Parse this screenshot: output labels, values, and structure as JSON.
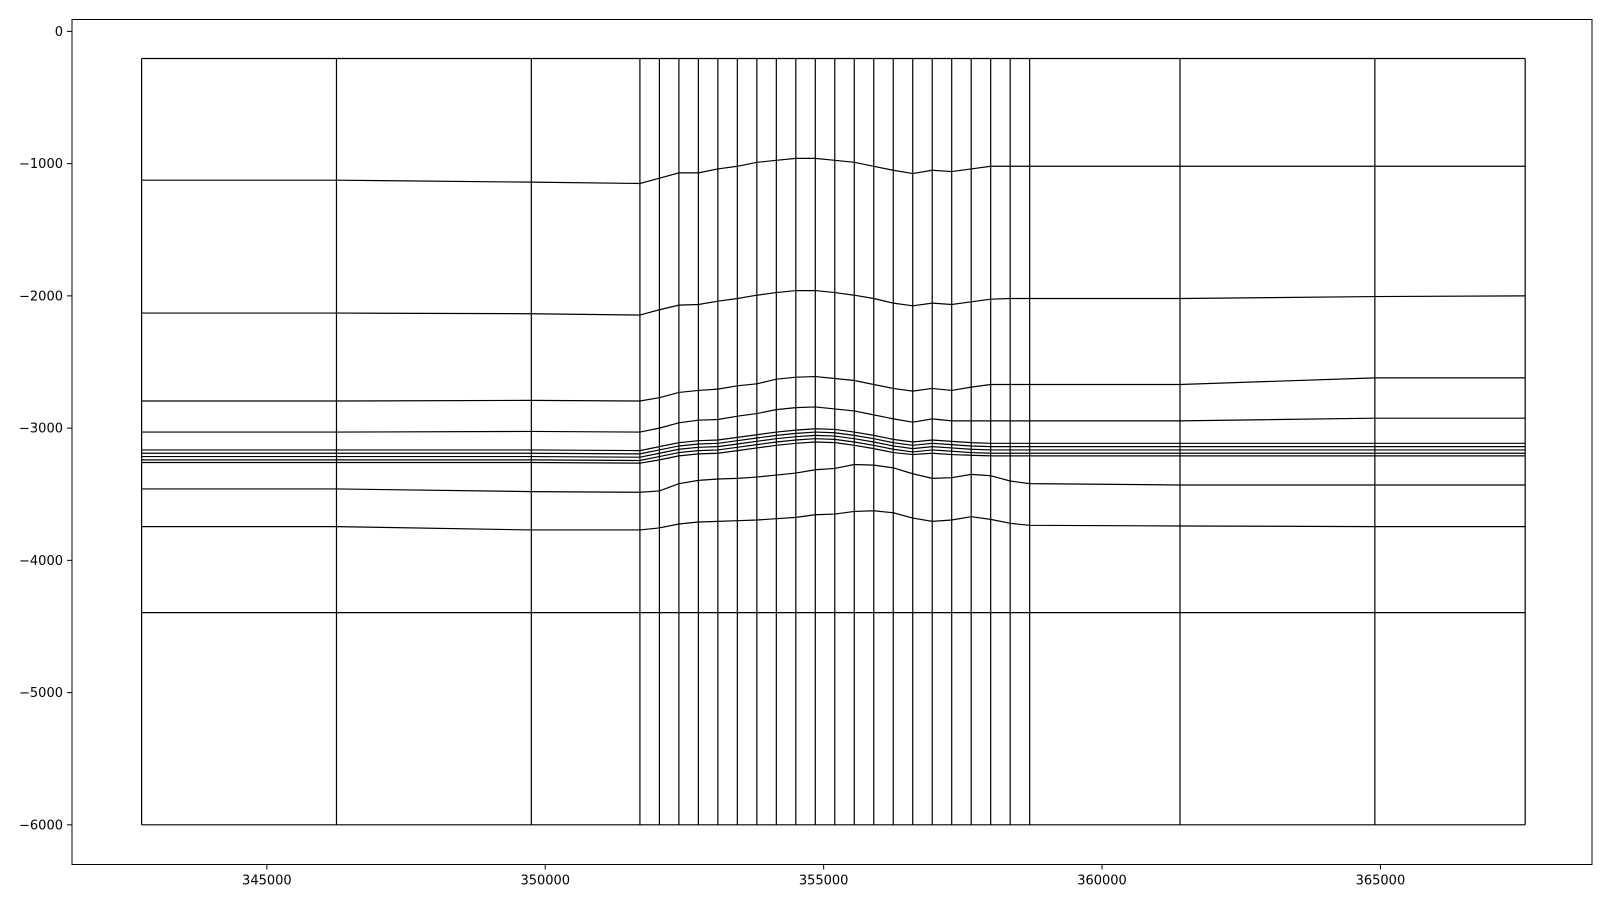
{
  "chart_data": {
    "type": "line",
    "title": "",
    "xlabel": "",
    "ylabel": "",
    "xlim": [
      341500,
      368800
    ],
    "ylim": [
      -6300,
      90
    ],
    "grid": false,
    "x_ticks": [
      {
        "value": 345000,
        "label": "345000"
      },
      {
        "value": 350000,
        "label": "350000"
      },
      {
        "value": 355000,
        "label": "355000"
      },
      {
        "value": 360000,
        "label": "360000"
      },
      {
        "value": 365000,
        "label": "365000"
      }
    ],
    "y_ticks": [
      {
        "value": 0,
        "label": "0"
      },
      {
        "value": -1000,
        "label": "−1000"
      },
      {
        "value": -2000,
        "label": "−2000"
      },
      {
        "value": -3000,
        "label": "−3000"
      },
      {
        "value": -4000,
        "label": "−4000"
      },
      {
        "value": -5000,
        "label": "−5000"
      },
      {
        "value": -6000,
        "label": "−6000"
      }
    ],
    "x_nodes": [
      342750,
      346250,
      349750,
      351700,
      352050,
      352400,
      352750,
      353100,
      353450,
      353800,
      354150,
      354500,
      354850,
      355200,
      355550,
      355900,
      356250,
      356600,
      356950,
      357300,
      357650,
      358000,
      358350,
      358700,
      361400,
      364900,
      367600
    ],
    "series": [
      {
        "values": [
          -205,
          -205,
          -205,
          -205,
          -205,
          -205,
          -205,
          -205,
          -205,
          -205,
          -205,
          -205,
          -205,
          -205,
          -205,
          -205,
          -205,
          -205,
          -205,
          -205,
          -205,
          -205,
          -205,
          -205,
          -205,
          -205,
          -205
        ]
      },
      {
        "values": [
          -1125,
          -1125,
          -1140,
          -1150,
          -1110,
          -1070,
          -1070,
          -1040,
          -1020,
          -990,
          -975,
          -960,
          -960,
          -975,
          -990,
          -1020,
          -1050,
          -1075,
          -1050,
          -1060,
          -1040,
          -1020,
          -1020,
          -1020,
          -1020,
          -1020,
          -1020
        ]
      },
      {
        "values": [
          -2130,
          -2130,
          -2135,
          -2145,
          -2105,
          -2070,
          -2065,
          -2040,
          -2020,
          -1995,
          -1975,
          -1960,
          -1960,
          -1975,
          -1995,
          -2020,
          -2055,
          -2075,
          -2055,
          -2065,
          -2045,
          -2025,
          -2020,
          -2020,
          -2020,
          -2005,
          -2000
        ]
      },
      {
        "values": [
          -2795,
          -2795,
          -2790,
          -2795,
          -2770,
          -2730,
          -2715,
          -2705,
          -2680,
          -2665,
          -2630,
          -2615,
          -2610,
          -2625,
          -2640,
          -2670,
          -2700,
          -2720,
          -2700,
          -2715,
          -2690,
          -2670,
          -2670,
          -2670,
          -2670,
          -2620,
          -2620
        ]
      },
      {
        "values": [
          -3030,
          -3030,
          -3025,
          -3030,
          -3000,
          -2960,
          -2940,
          -2935,
          -2910,
          -2890,
          -2860,
          -2845,
          -2840,
          -2855,
          -2870,
          -2900,
          -2930,
          -2955,
          -2930,
          -2945,
          -2945,
          -2945,
          -2945,
          -2945,
          -2945,
          -2925,
          -2925
        ]
      },
      {
        "values": [
          -3165,
          -3165,
          -3165,
          -3170,
          -3140,
          -3110,
          -3095,
          -3090,
          -3070,
          -3050,
          -3030,
          -3015,
          -3005,
          -3010,
          -3030,
          -3055,
          -3085,
          -3105,
          -3090,
          -3100,
          -3110,
          -3115,
          -3115,
          -3115,
          -3115,
          -3115,
          -3115
        ]
      },
      {
        "values": [
          -3190,
          -3190,
          -3190,
          -3195,
          -3165,
          -3135,
          -3120,
          -3115,
          -3095,
          -3075,
          -3055,
          -3040,
          -3030,
          -3035,
          -3055,
          -3080,
          -3110,
          -3130,
          -3115,
          -3125,
          -3135,
          -3140,
          -3140,
          -3140,
          -3140,
          -3140,
          -3140
        ]
      },
      {
        "values": [
          -3215,
          -3215,
          -3215,
          -3220,
          -3190,
          -3160,
          -3145,
          -3140,
          -3120,
          -3100,
          -3080,
          -3065,
          -3055,
          -3060,
          -3080,
          -3105,
          -3135,
          -3155,
          -3140,
          -3150,
          -3160,
          -3165,
          -3165,
          -3165,
          -3165,
          -3165,
          -3165
        ]
      },
      {
        "values": [
          -3240,
          -3240,
          -3240,
          -3245,
          -3215,
          -3185,
          -3170,
          -3165,
          -3145,
          -3125,
          -3105,
          -3090,
          -3080,
          -3085,
          -3105,
          -3130,
          -3160,
          -3180,
          -3165,
          -3175,
          -3185,
          -3190,
          -3190,
          -3190,
          -3190,
          -3190,
          -3190
        ]
      },
      {
        "values": [
          -3260,
          -3260,
          -3260,
          -3265,
          -3240,
          -3210,
          -3195,
          -3190,
          -3170,
          -3150,
          -3130,
          -3115,
          -3105,
          -3110,
          -3130,
          -3155,
          -3185,
          -3200,
          -3190,
          -3200,
          -3205,
          -3210,
          -3210,
          -3210,
          -3210,
          -3210,
          -3210
        ]
      },
      {
        "values": [
          -3460,
          -3460,
          -3480,
          -3485,
          -3475,
          -3420,
          -3395,
          -3385,
          -3380,
          -3370,
          -3355,
          -3340,
          -3315,
          -3305,
          -3275,
          -3280,
          -3300,
          -3345,
          -3380,
          -3375,
          -3350,
          -3360,
          -3400,
          -3420,
          -3430,
          -3430,
          -3430
        ]
      },
      {
        "values": [
          -3745,
          -3745,
          -3770,
          -3770,
          -3755,
          -3725,
          -3710,
          -3705,
          -3700,
          -3695,
          -3685,
          -3675,
          -3655,
          -3650,
          -3630,
          -3625,
          -3640,
          -3680,
          -3705,
          -3695,
          -3670,
          -3690,
          -3720,
          -3735,
          -3740,
          -3745,
          -3745
        ]
      },
      {
        "values": [
          -4395,
          -4395,
          -4395,
          -4395,
          -4395,
          -4395,
          -4395,
          -4395,
          -4395,
          -4395,
          -4395,
          -4395,
          -4395,
          -4395,
          -4395,
          -4395,
          -4395,
          -4395,
          -4395,
          -4395,
          -4395,
          -4395,
          -4395,
          -4395,
          -4395,
          -4395,
          -4395
        ]
      },
      {
        "values": [
          -6000,
          -6000,
          -6000,
          -6000,
          -6000,
          -6000,
          -6000,
          -6000,
          -6000,
          -6000,
          -6000,
          -6000,
          -6000,
          -6000,
          -6000,
          -6000,
          -6000,
          -6000,
          -6000,
          -6000,
          -6000,
          -6000,
          -6000,
          -6000,
          -6000,
          -6000,
          -6000
        ]
      }
    ]
  }
}
